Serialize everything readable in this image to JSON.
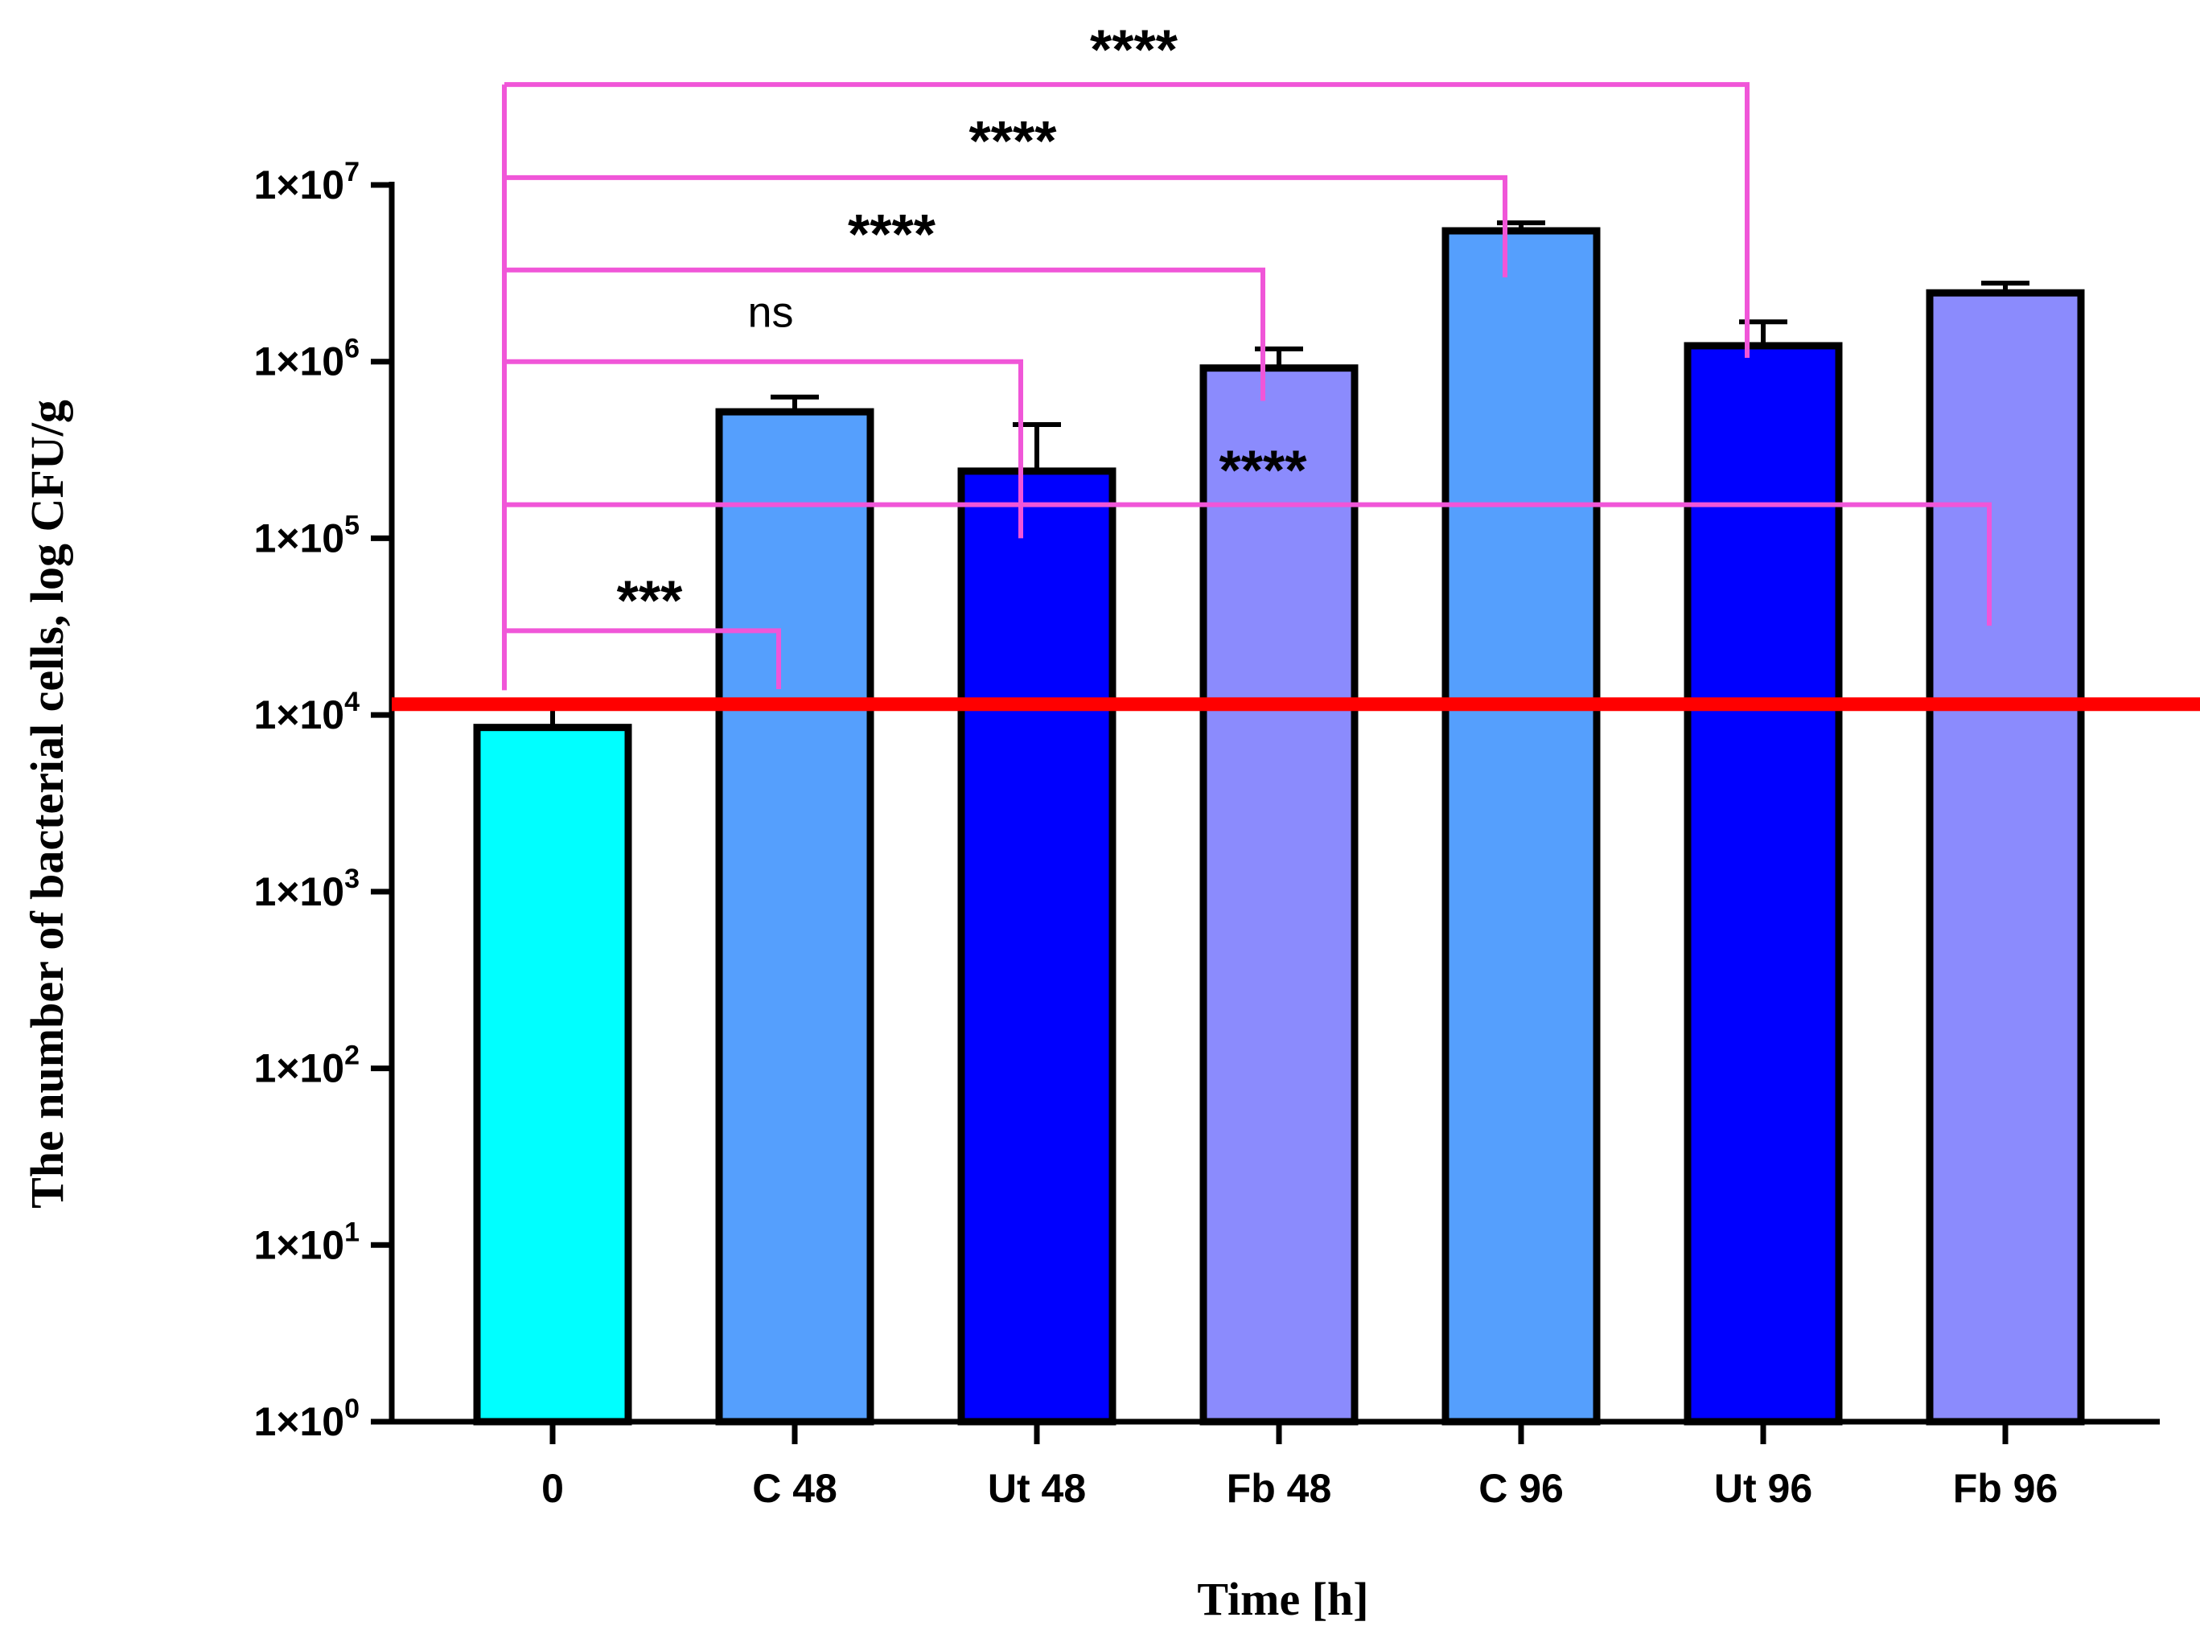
{
  "chart_data": {
    "type": "bar",
    "xlabel": "Time [h]",
    "ylabel": "The number of bacterial cells, log CFU/g",
    "yscale": "log",
    "ylim": [
      1,
      10000000
    ],
    "y_ticks": [
      {
        "value": 1,
        "base": "1×10",
        "exp": "0"
      },
      {
        "value": 10,
        "base": "1×10",
        "exp": "1"
      },
      {
        "value": 100,
        "base": "1×10",
        "exp": "2"
      },
      {
        "value": 1000,
        "base": "1×10",
        "exp": "3"
      },
      {
        "value": 10000,
        "base": "1×10",
        "exp": "4"
      },
      {
        "value": 100000,
        "base": "1×10",
        "exp": "5"
      },
      {
        "value": 1000000,
        "base": "1×10",
        "exp": "6"
      },
      {
        "value": 10000000,
        "base": "1×10",
        "exp": "7"
      }
    ],
    "categories": [
      "0",
      "C 48",
      "Ut 48",
      "Fb 48",
      "C 96",
      "Ut 96",
      "Fb 96"
    ],
    "values": [
      8500,
      520000,
      240000,
      920000,
      5500000,
      1230000,
      2450000
    ],
    "error_upper": [
      11500,
      630000,
      440000,
      1180000,
      6100000,
      1680000,
      2780000
    ],
    "colors": [
      "#00ffff",
      "#559ffd",
      "#0000ff",
      "#8b8bfd",
      "#559ffd",
      "#0000ff",
      "#8b8bfd"
    ],
    "reference_line": {
      "value": 11500,
      "color": "#ff0000"
    },
    "significance": [
      {
        "from": "0",
        "to": "C 48",
        "label": "***",
        "level": 30000,
        "right_end": 14000,
        "label_level": 55000
      },
      {
        "from": "0",
        "to": "Fb 96",
        "label": "****",
        "level": 155000,
        "right_end": 32000,
        "label_level": 300000
      },
      {
        "from": "0",
        "to": "Ut 48",
        "label": "ns",
        "level": 1000000,
        "right_end": 100000,
        "label_level": 1900000
      },
      {
        "from": "0",
        "to": "Fb 48",
        "label": "****",
        "level": 3300000,
        "right_end": 600000,
        "label_level": 6500000
      },
      {
        "from": "0",
        "to": "C 96",
        "label": "****",
        "level": 11000000,
        "right_end": 3000000,
        "label_level": 22000000
      },
      {
        "from": "0",
        "to": "Ut 96",
        "label": "****",
        "level": 37000000,
        "right_end": 1050000,
        "label_level": 72000000
      }
    ],
    "significance_color": "#f056d8"
  }
}
